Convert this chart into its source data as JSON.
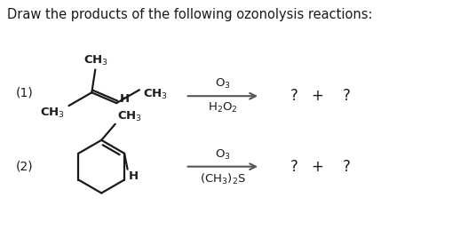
{
  "title": "Draw the products of the following ozonolysis reactions:",
  "bg_color": "#ffffff",
  "text_color": "#1a1a1a",
  "reaction1_label": "(1)",
  "reaction2_label": "(2)",
  "reagent1_top": "O$_3$",
  "reagent1_bot": "H$_2$O$_2$",
  "reagent2_top": "O$_3$",
  "reagent2_bot": "(CH$_3$)$_2$S",
  "figsize": [
    5.36,
    2.76
  ],
  "dpi": 100
}
